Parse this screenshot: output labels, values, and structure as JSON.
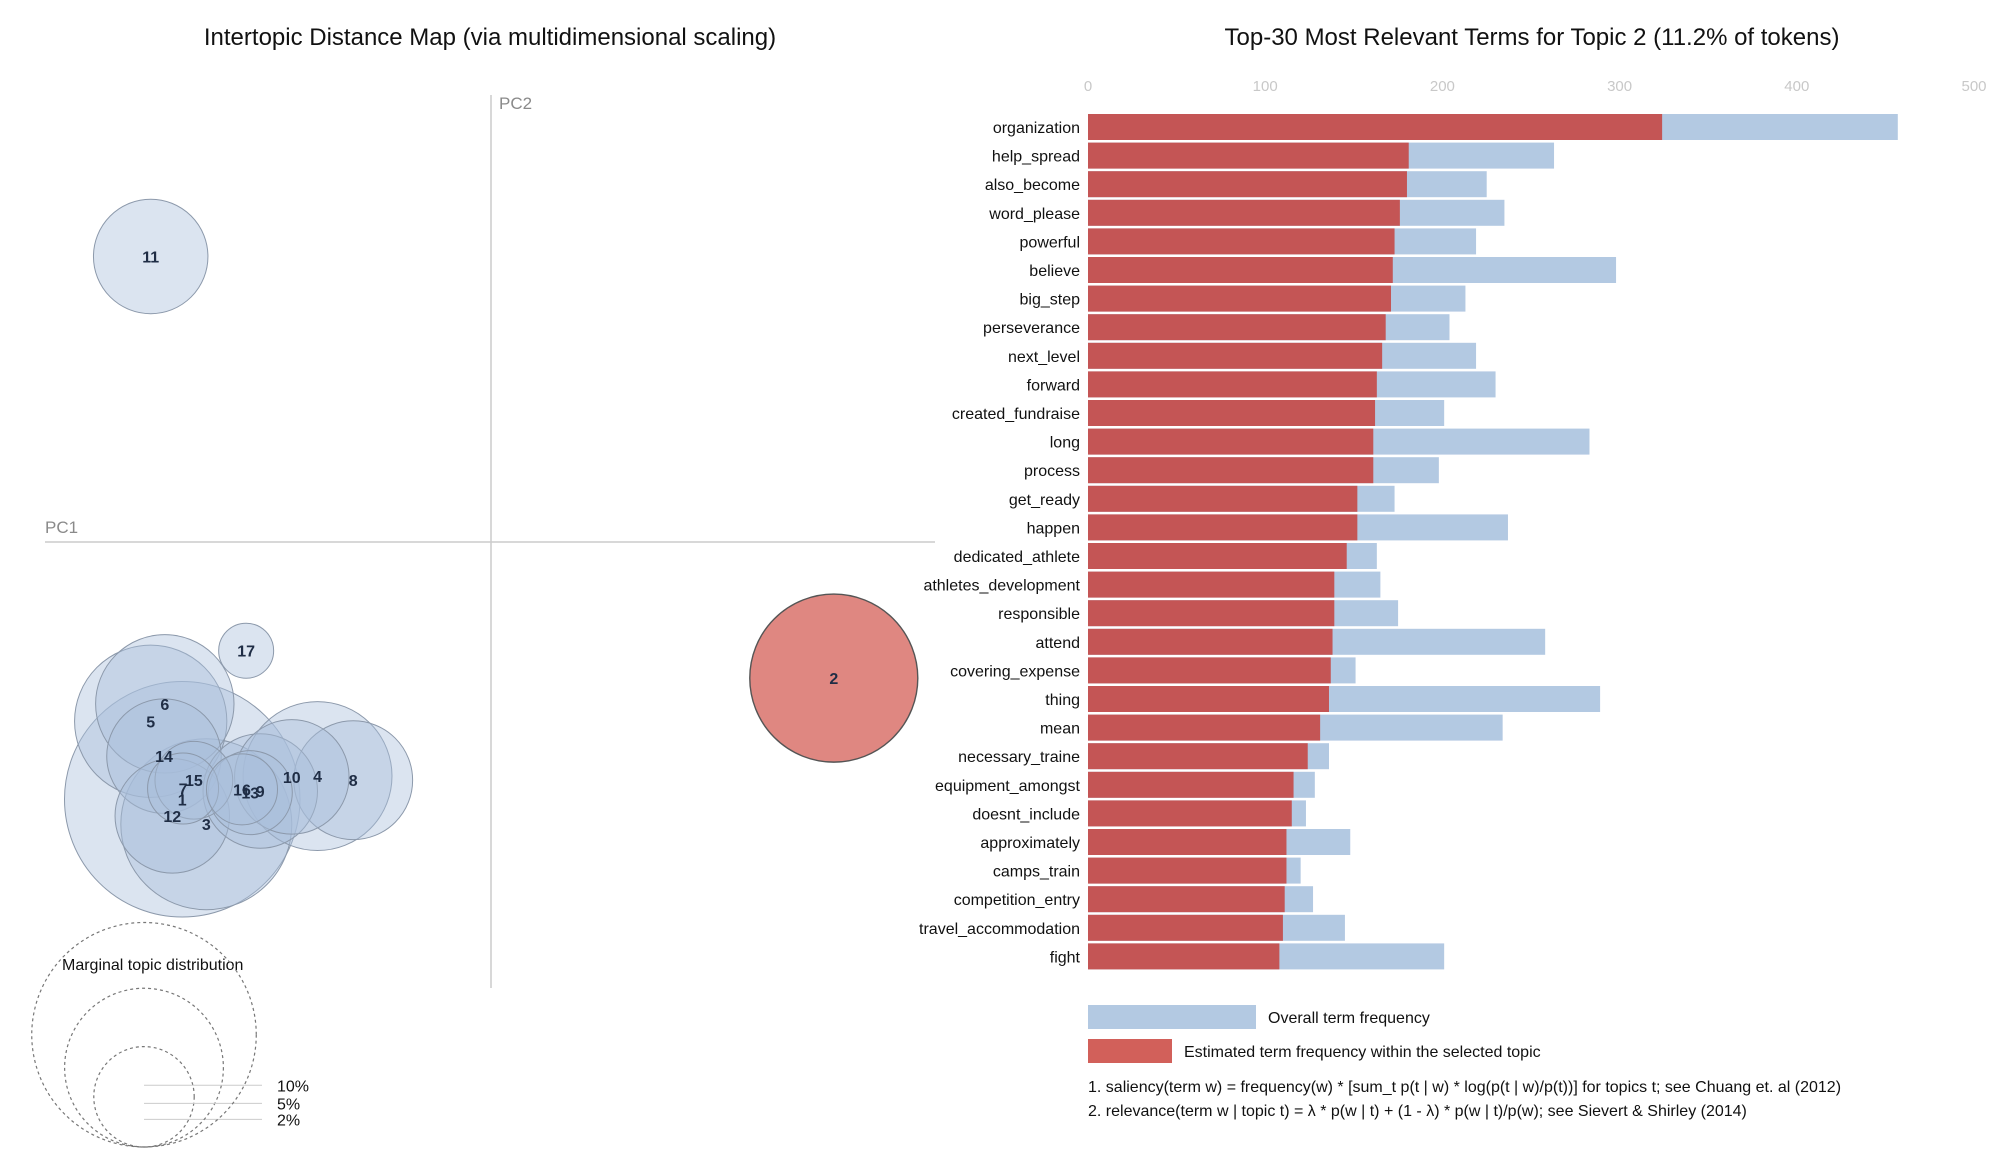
{
  "left_panel": {
    "title": "Intertopic Distance Map (via multidimensional scaling)",
    "pc1_label": "PC1",
    "pc2_label": "PC2",
    "marginal_title": "Marginal topic distribution",
    "marginal_legend": [
      "2%",
      "5%",
      "10%"
    ]
  },
  "right_panel": {
    "title": "Top-30 Most Relevant Terms for Topic 2 (11.2% of tokens)",
    "legend_overall": "Overall term frequency",
    "legend_estimated": "Estimated term frequency within the selected topic",
    "note1": "1. saliency(term w) = frequency(w) * [sum_t p(t | w) * log(p(t | w)/p(t))] for topics t; see Chuang et. al (2012)",
    "note2": "2. relevance(term w | topic t) = λ * p(w | t) + (1 - λ) * p(w | t)/p(w); see Sievert & Shirley (2014)"
  },
  "colors": {
    "topic_bubble_fill": "#a9bfdb",
    "topic_bubble_stroke": "#8c99ab",
    "selected_bubble_fill": "#d9726b",
    "selected_bubble_stroke": "#555555",
    "overall_bar": "#b3c9e2",
    "topic_bar": "#c45555",
    "legend_topic_bar": "#d2605a",
    "axis_line": "#cccccc",
    "grid_text": "#c8c8c8"
  },
  "chart_data": [
    {
      "type": "scatter",
      "title": "Intertopic Distance Map (via multidimensional scaling)",
      "xlabel": "PC1",
      "ylabel": "PC2",
      "selected_topic": "2",
      "marginal_legend_values": [
        2,
        5,
        10
      ],
      "topics": [
        {
          "label": "11",
          "x": -0.41,
          "y": 0.344,
          "size": 2.6
        },
        {
          "label": "17",
          "x": -0.295,
          "y": -0.131,
          "size": 0.6
        },
        {
          "label": "6",
          "x": -0.393,
          "y": -0.195,
          "size": 3.8
        },
        {
          "label": "5",
          "x": -0.41,
          "y": -0.216,
          "size": 4.6
        },
        {
          "label": "14",
          "x": -0.394,
          "y": -0.258,
          "size": 2.6
        },
        {
          "label": "15",
          "x": -0.358,
          "y": -0.287,
          "size": 1.2
        },
        {
          "label": "7",
          "x": -0.371,
          "y": -0.297,
          "size": 1.0
        },
        {
          "label": "1",
          "x": -0.372,
          "y": -0.31,
          "size": 11.0
        },
        {
          "label": "12",
          "x": -0.384,
          "y": -0.33,
          "size": 2.6
        },
        {
          "label": "3",
          "x": -0.343,
          "y": -0.34,
          "size": 5.8
        },
        {
          "label": "16",
          "x": -0.3,
          "y": -0.298,
          "size": 1.0
        },
        {
          "label": "13",
          "x": -0.29,
          "y": -0.302,
          "size": 1.4
        },
        {
          "label": "9",
          "x": -0.278,
          "y": -0.3,
          "size": 2.6
        },
        {
          "label": "10",
          "x": -0.24,
          "y": -0.283,
          "size": 2.6
        },
        {
          "label": "4",
          "x": -0.209,
          "y": -0.282,
          "size": 4.4
        },
        {
          "label": "8",
          "x": -0.166,
          "y": -0.287,
          "size": 2.8
        },
        {
          "label": "2",
          "x": 0.413,
          "y": -0.164,
          "size": 5.6
        }
      ]
    },
    {
      "type": "bar",
      "title": "Top-30 Most Relevant Terms for Topic 2 (11.2% of tokens)",
      "orientation": "horizontal",
      "xlim": [
        0,
        500
      ],
      "ticks": [
        0,
        100,
        200,
        300,
        400,
        500
      ],
      "categories": [
        "organization",
        "help_spread",
        "also_become",
        "word_please",
        "powerful",
        "believe",
        "big_step",
        "perseverance",
        "next_level",
        "forward",
        "created_fundraise",
        "long",
        "process",
        "get_ready",
        "happen",
        "dedicated_athlete",
        "athletes_development",
        "responsible",
        "attend",
        "covering_expense",
        "thing",
        "mean",
        "necessary_traine",
        "equipment_amongst",
        "doesnt_include",
        "approximately",
        "camps_train",
        "competition_entry",
        "travel_accommodation",
        "fight"
      ],
      "series": [
        {
          "name": "Overall term frequency",
          "values": [
            457,
            263,
            225,
            235,
            219,
            298,
            213,
            204,
            219,
            230,
            201,
            283,
            198,
            173,
            237,
            163,
            165,
            175,
            258,
            151,
            289,
            234,
            136,
            128,
            123,
            148,
            120,
            127,
            145,
            201
          ]
        },
        {
          "name": "Estimated term frequency within the selected topic",
          "values": [
            324,
            181,
            180,
            176,
            173,
            172,
            171,
            168,
            166,
            163,
            162,
            161,
            161,
            152,
            152,
            146,
            139,
            139,
            138,
            137,
            136,
            131,
            124,
            116,
            115,
            112,
            112,
            111,
            110,
            108
          ]
        }
      ]
    }
  ]
}
